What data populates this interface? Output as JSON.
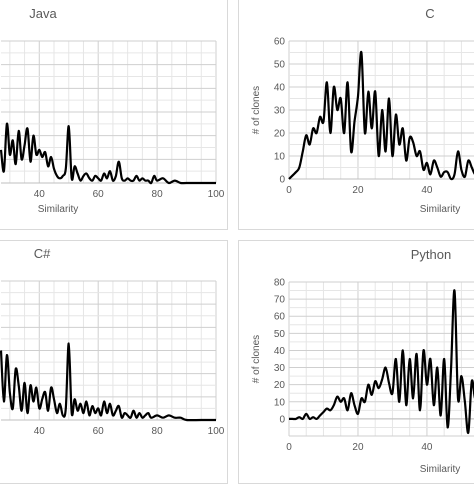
{
  "chart_data": [
    {
      "type": "line",
      "title": "Java",
      "xlabel": "Similarity",
      "ylabel": "",
      "xlim": [
        27,
        100
      ],
      "ylim": [
        0,
        60
      ],
      "x_ticks": [
        40,
        60,
        80,
        100
      ],
      "y_ticks": [],
      "grid": true,
      "line_color": "#000000",
      "series": [
        {
          "x": [
            27,
            28,
            29,
            30,
            31,
            32,
            33,
            34,
            35,
            36,
            37,
            38,
            39,
            40,
            41,
            42,
            43,
            44,
            45,
            46,
            47,
            48,
            49,
            50,
            51,
            52,
            53,
            54,
            55,
            56,
            57,
            58,
            59,
            60,
            61,
            62,
            63,
            64,
            65,
            66,
            67,
            68,
            69,
            70,
            71,
            72,
            73,
            74,
            75,
            76,
            77,
            78,
            79,
            80,
            82,
            84,
            86,
            88,
            90,
            95,
            100
          ],
          "y": [
            14,
            5,
            25,
            12,
            18,
            8,
            22,
            10,
            16,
            23,
            9,
            20,
            12,
            14,
            11,
            13,
            7,
            11,
            6,
            3,
            2,
            3,
            6,
            24,
            2,
            7,
            4,
            1,
            3,
            4,
            2,
            1,
            3,
            2,
            1,
            4,
            2,
            5,
            1,
            3,
            9,
            2,
            1,
            2,
            1,
            1,
            3,
            1,
            2,
            1,
            1,
            0,
            3,
            1,
            2,
            0,
            1,
            0,
            0,
            0,
            0
          ]
        }
      ]
    },
    {
      "type": "line",
      "title": "C",
      "xlabel": "Similarity",
      "ylabel": "# of clones",
      "xlim": [
        0,
        58
      ],
      "ylim": [
        0,
        60
      ],
      "x_ticks": [
        0,
        20,
        40
      ],
      "y_ticks": [
        0,
        10,
        20,
        30,
        40,
        50,
        60
      ],
      "grid": true,
      "line_color": "#000000",
      "series": [
        {
          "x": [
            0,
            2,
            3,
            4,
            5,
            6,
            7,
            8,
            9,
            10,
            11,
            12,
            13,
            14,
            15,
            16,
            17,
            18,
            19,
            20,
            21,
            22,
            23,
            24,
            25,
            26,
            27,
            28,
            29,
            30,
            31,
            32,
            33,
            34,
            35,
            36,
            37,
            38,
            39,
            40,
            41,
            42,
            43,
            44,
            45,
            46,
            47,
            48,
            49,
            50,
            51,
            52,
            53,
            54,
            55,
            56,
            57,
            58
          ],
          "y": [
            0,
            3,
            5,
            12,
            19,
            15,
            22,
            20,
            27,
            25,
            42,
            20,
            40,
            30,
            35,
            20,
            42,
            12,
            25,
            36,
            55,
            20,
            38,
            22,
            38,
            10,
            30,
            12,
            35,
            10,
            28,
            15,
            22,
            8,
            18,
            16,
            10,
            12,
            4,
            7,
            2,
            8,
            5,
            1,
            3,
            3,
            0,
            2,
            12,
            4,
            1,
            8,
            5,
            2,
            4,
            3,
            1,
            2
          ]
        }
      ]
    },
    {
      "type": "line",
      "title": "C#",
      "xlabel": "",
      "ylabel": "",
      "xlim": [
        27,
        100
      ],
      "ylim": [
        0,
        60
      ],
      "x_ticks": [
        40,
        60,
        80,
        100
      ],
      "y_ticks": [],
      "grid": true,
      "line_color": "#000000",
      "series": [
        {
          "x": [
            27,
            28,
            29,
            30,
            31,
            32,
            33,
            34,
            35,
            36,
            37,
            38,
            39,
            40,
            41,
            42,
            43,
            44,
            45,
            46,
            47,
            48,
            49,
            50,
            51,
            52,
            53,
            54,
            55,
            56,
            57,
            58,
            59,
            60,
            61,
            62,
            63,
            64,
            65,
            66,
            67,
            68,
            69,
            70,
            71,
            72,
            73,
            74,
            75,
            76,
            77,
            78,
            80,
            82,
            84,
            86,
            88,
            90,
            95,
            100
          ],
          "y": [
            30,
            8,
            28,
            12,
            5,
            22,
            15,
            4,
            16,
            3,
            15,
            8,
            14,
            5,
            9,
            12,
            4,
            14,
            9,
            3,
            7,
            2,
            5,
            33,
            3,
            9,
            4,
            7,
            3,
            8,
            2,
            6,
            3,
            5,
            2,
            8,
            3,
            7,
            2,
            4,
            6,
            1,
            3,
            2,
            1,
            4,
            1,
            3,
            1,
            2,
            3,
            1,
            2,
            1,
            2,
            1,
            1,
            0,
            0,
            0
          ]
        }
      ]
    },
    {
      "type": "line",
      "title": "Python",
      "xlabel": "Similarity",
      "ylabel": "# of clones",
      "xlim": [
        0,
        58
      ],
      "ylim": [
        -10,
        80
      ],
      "x_ticks": [
        0,
        20,
        40
      ],
      "y_ticks": [
        0,
        10,
        20,
        30,
        40,
        50,
        60,
        70,
        80
      ],
      "grid": true,
      "line_color": "#000000",
      "series": [
        {
          "x": [
            0,
            1,
            2,
            3,
            4,
            5,
            6,
            7,
            8,
            9,
            10,
            11,
            12,
            13,
            14,
            15,
            16,
            17,
            18,
            19,
            20,
            21,
            22,
            23,
            24,
            25,
            26,
            27,
            28,
            29,
            30,
            31,
            32,
            33,
            34,
            35,
            36,
            37,
            38,
            39,
            40,
            41,
            42,
            43,
            44,
            45,
            46,
            47,
            48,
            49,
            50,
            51,
            52,
            53,
            54,
            55,
            56,
            57,
            58
          ],
          "y": [
            0,
            0,
            0,
            1,
            0,
            3,
            0,
            1,
            0,
            2,
            4,
            6,
            5,
            8,
            13,
            10,
            12,
            5,
            15,
            8,
            3,
            12,
            10,
            20,
            14,
            22,
            18,
            23,
            30,
            21,
            15,
            35,
            10,
            40,
            8,
            35,
            12,
            38,
            5,
            40,
            20,
            35,
            8,
            30,
            2,
            35,
            -5,
            30,
            75,
            12,
            25,
            10,
            -8,
            22,
            12,
            24,
            10,
            16,
            12
          ]
        }
      ]
    }
  ]
}
